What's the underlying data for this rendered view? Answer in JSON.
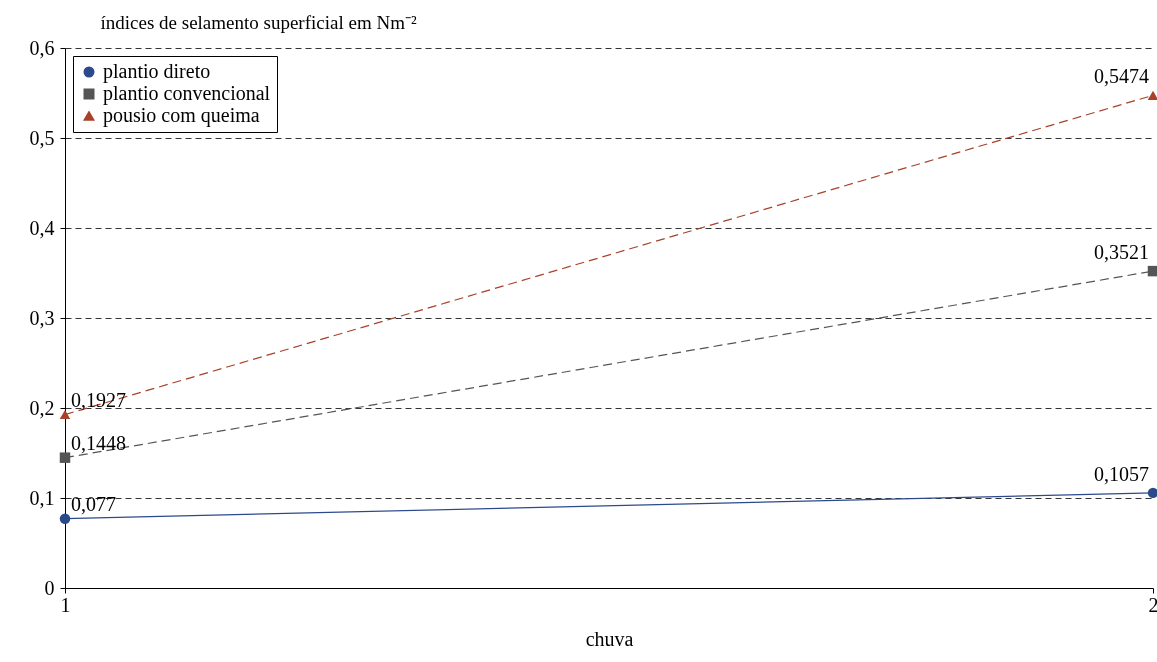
{
  "chart_data": {
    "type": "line",
    "ylabel": "índices de selamento superficial em Nm⁻²",
    "xlabel": "chuva",
    "x": [
      1,
      2
    ],
    "xlim": [
      1,
      2
    ],
    "xticks": [
      1,
      2
    ],
    "ylim": [
      0,
      0.6
    ],
    "yticks": [
      0,
      {
        "value": 0.1,
        "label": "0,1"
      },
      {
        "value": 0.2,
        "label": "0,2"
      },
      {
        "value": 0.3,
        "label": "0,3"
      },
      {
        "value": 0.4,
        "label": "0,4"
      },
      {
        "value": 0.5,
        "label": "0,5"
      },
      {
        "value": 0.6,
        "label": "0,6"
      }
    ],
    "grid": "y",
    "legend": "top left",
    "series": [
      {
        "name": "plantio direto",
        "color": "#2b4a8c",
        "values": [
          0.077,
          0.1057
        ],
        "value_labels": [
          "0,077",
          "0,1057"
        ],
        "marker": "circle",
        "line_style": "solid"
      },
      {
        "name": "plantio convencional",
        "color": "#555555",
        "values": [
          0.1448,
          0.3521
        ],
        "value_labels": [
          "0,1448",
          "0,3521"
        ],
        "marker": "square",
        "line_style": "dashed"
      },
      {
        "name": "pousio com queima",
        "color": "#a8402a",
        "values": [
          0.1927,
          0.5474
        ],
        "value_labels": [
          "0,1927",
          "0,5474"
        ],
        "marker": "triangle",
        "line_style": "dashed"
      }
    ]
  }
}
